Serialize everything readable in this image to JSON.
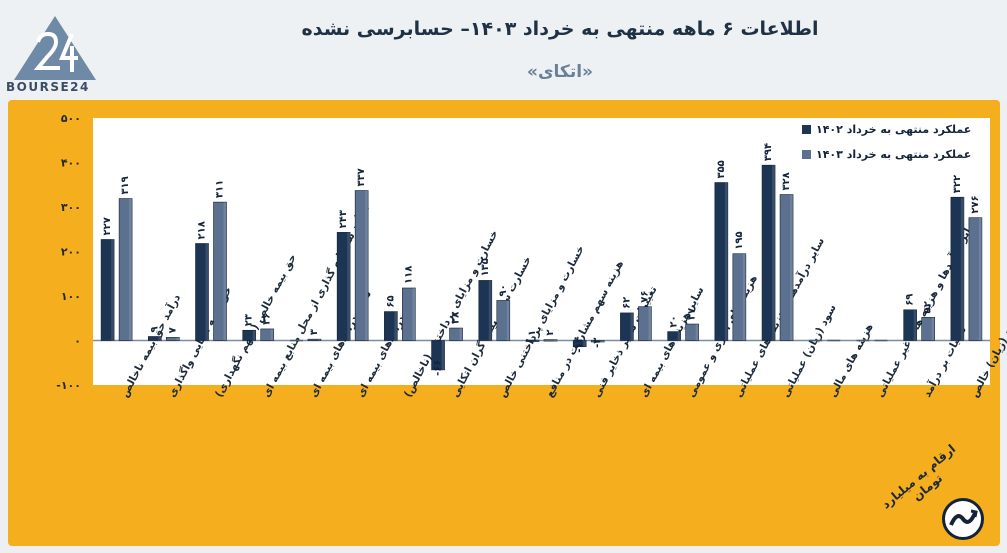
{
  "header": {
    "title": "اطلاعات ۶ ماهه منتهی به خرداد ۱۴۰۳– حسابرسی نشده",
    "subtitle": "«اتکای»",
    "logo_text": "BOURSE24"
  },
  "footer": {
    "unit_note": "ارقام به میلیارد تومان"
  },
  "colors": {
    "series_1402": "#1d3554",
    "series_1403": "#5c7190",
    "plot_bg": "#ffffff",
    "frame": "#f5ae1d"
  },
  "chart_data": {
    "type": "bar",
    "title": "اطلاعات ۶ ماهه منتهی به خرداد ۱۴۰۳– حسابرسی نشده",
    "xlabel": "",
    "ylabel": "",
    "ylim": [
      -100,
      500
    ],
    "yticks": [
      -100,
      0,
      100,
      200,
      300,
      400,
      500
    ],
    "ytick_labels": [
      "-۱۰۰",
      "۰",
      "۱۰۰",
      "۲۰۰",
      "۳۰۰",
      "۴۰۰",
      "۵۰۰"
    ],
    "grid": false,
    "legend_position": "top-right",
    "categories": [
      "درآمد حق بیمه ناخالص",
      "حق بیمه اتکایی واگذاری",
      "حق بیمه خالص (سهم نگهداری)",
      "درآمد سرمایه گذاری از محل منابع بیمه ای",
      "سایر درآمدهای بیمه ای",
      "درآمدهای بیمه ای",
      "خسارت و مزایای پرداختنی (ناخالص)",
      "خسارت سهم بیمه گران اتکایی",
      "خسارت و مزایای پرداختنی خالص",
      "هزینه سهم مشارکت در منافع",
      "تغییرات سایر ذخایر فنی",
      "سایر هزینه های بیمه ای",
      "هزینه های اداری و عمومی",
      "سایر درآمدها و هزینه های عملیاتی",
      "سود (زیان) عملیاتی",
      "هزینه های مالی",
      "سایر درآمدها و هزینه های غیر عملیاتی",
      "مالیات بر درآمد",
      "سود (زیان) خالص"
    ],
    "series": [
      {
        "name": "عملکرد منتهی به خرداد ۱۴۰۲",
        "values": [
          227,
          9,
          218,
          23,
          null,
          243,
          65,
          -66,
          135,
          1,
          -14,
          62,
          20,
          355,
          394,
          null,
          null,
          69,
          322
        ],
        "labels": [
          "۲۲۷",
          "۹",
          "۲۱۸",
          "۲۳",
          "",
          "۲۴۳",
          "۶۵",
          "-۶۶",
          "۱۳۵",
          "۱",
          "-۱۴",
          "۶۲",
          "۲۰",
          "۳۵۵",
          "۳۹۴",
          "",
          "",
          "۶۹",
          "۳۲۲"
        ]
      },
      {
        "name": "عملکرد منتهی به خرداد ۱۴۰۳",
        "values": [
          319,
          7,
          311,
          26,
          3,
          337,
          118,
          28,
          90,
          2,
          -3,
          76,
          37,
          195,
          328,
          null,
          null,
          52,
          276
        ],
        "labels": [
          "۳۱۹",
          "۷",
          "۳۱۱",
          "۲۶",
          "۳",
          "۳۳۷",
          "۱۱۸",
          "۲۸",
          "۹۰",
          "۲",
          "-۳",
          "۷۶",
          "۳۷",
          "۱۹۵",
          "۳۲۸",
          "",
          "",
          "۵۲",
          "۲۷۶"
        ]
      }
    ]
  }
}
